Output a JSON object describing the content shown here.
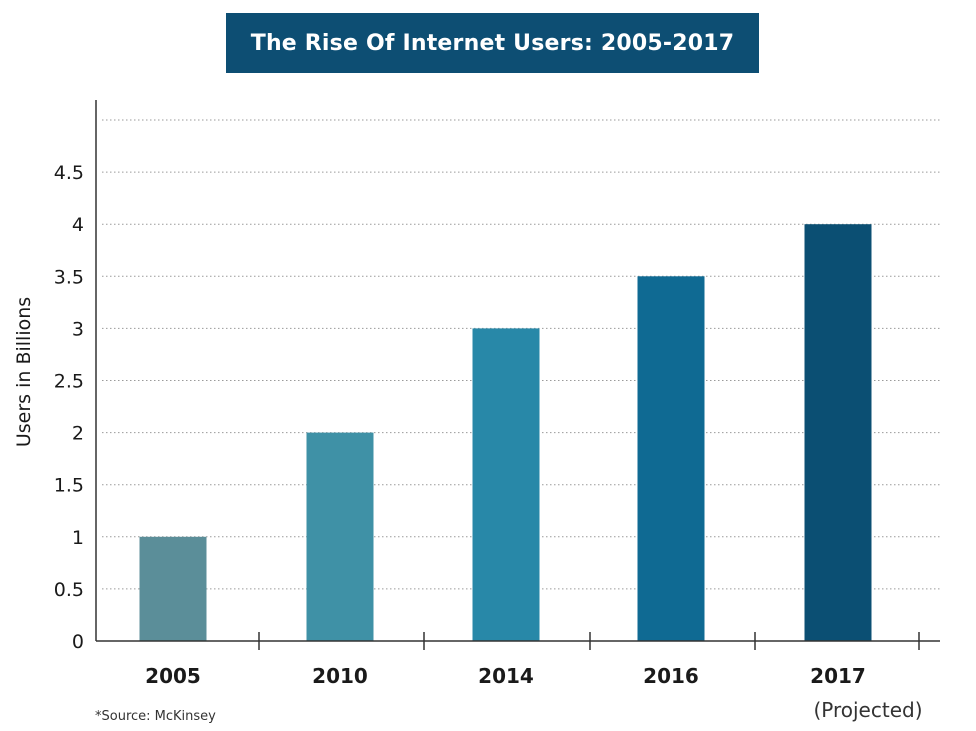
{
  "chart_data": {
    "type": "bar",
    "title": "The Rise Of Internet Users: 2005-2017",
    "ylabel": "Users in Billions",
    "xlabel": "",
    "categories": [
      "2005",
      "2010",
      "2014",
      "2016",
      "2017"
    ],
    "category_sublabels": [
      "",
      "",
      "",
      "",
      "(Projected)"
    ],
    "values": [
      1,
      2,
      3,
      3.5,
      4
    ],
    "bar_colors": [
      "#5b8e99",
      "#3f91a6",
      "#2888a8",
      "#0f6a93",
      "#0b4f73"
    ],
    "ylim": [
      0,
      5
    ],
    "yticks": [
      0,
      0.5,
      1,
      1.5,
      2,
      2.5,
      3,
      3.5,
      4,
      4.5
    ],
    "ytick_labels": [
      "0",
      "0.5",
      "1",
      "1.5",
      "2",
      "2.5",
      "3",
      "3.5",
      "4",
      "4.5"
    ],
    "grid": true,
    "grid_style": "dotted",
    "title_bg_color": "#0d4e73",
    "source": "*Source: McKinsey"
  }
}
